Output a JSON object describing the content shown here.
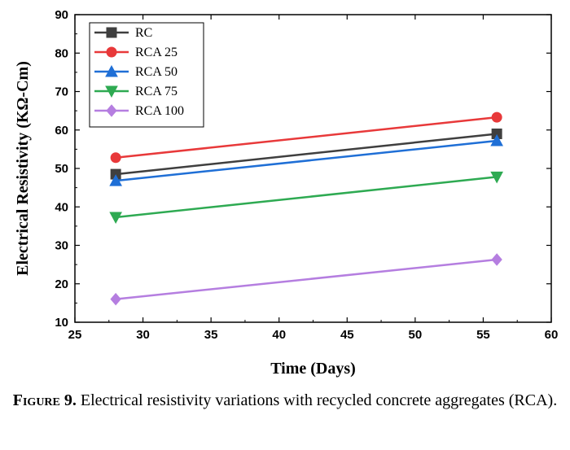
{
  "chart_data": {
    "type": "line",
    "xlabel": "Time (Days)",
    "ylabel": "Electrical Resistivity (KΩ-Cm)",
    "xlim": [
      25,
      60
    ],
    "ylim": [
      10,
      90
    ],
    "xticks": [
      25,
      30,
      35,
      40,
      45,
      50,
      55,
      60
    ],
    "yticks": [
      10,
      20,
      30,
      40,
      50,
      60,
      70,
      80,
      90
    ],
    "grid": false,
    "legend_position": "top-left",
    "series": [
      {
        "name": "RC",
        "color": "#3f3f3f",
        "marker": "square",
        "x": [
          28,
          56
        ],
        "y": [
          48.5,
          59
        ]
      },
      {
        "name": "RCA 25",
        "color": "#e8393a",
        "marker": "circle",
        "x": [
          28,
          56
        ],
        "y": [
          52.8,
          63.3
        ]
      },
      {
        "name": "RCA 50",
        "color": "#1f6fd6",
        "marker": "triangle-up",
        "x": [
          28,
          56
        ],
        "y": [
          46.8,
          57.2
        ]
      },
      {
        "name": "RCA 75",
        "color": "#2eaa52",
        "marker": "triangle-down",
        "x": [
          28,
          56
        ],
        "y": [
          37.3,
          47.8
        ]
      },
      {
        "name": "RCA 100",
        "color": "#b57ee0",
        "marker": "diamond",
        "x": [
          28,
          56
        ],
        "y": [
          16,
          26.3
        ]
      }
    ]
  },
  "caption": {
    "label": "Figure 9.",
    "text": "Electrical resistivity variations with recycled concrete aggregates (RCA)."
  }
}
